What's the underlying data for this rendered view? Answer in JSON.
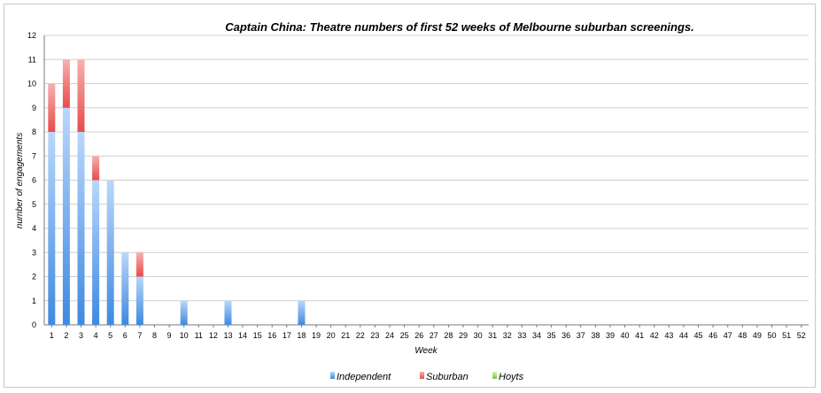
{
  "chart_data": {
    "type": "bar",
    "stacked": true,
    "title": "Captain China: Theatre numbers of first 52 weeks of Melbourne suburban screenings.",
    "xlabel": "Week",
    "ylabel": "number of engagements",
    "ylim": [
      0,
      12
    ],
    "yticks": [
      "0",
      "1",
      "2",
      "3",
      "4",
      "5",
      "6",
      "7",
      "8",
      "9",
      "10",
      "11",
      "12"
    ],
    "grid": true,
    "legend_position": "bottom",
    "categories": [
      "1",
      "2",
      "3",
      "4",
      "5",
      "6",
      "7",
      "8",
      "9",
      "10",
      "11",
      "12",
      "13",
      "14",
      "15",
      "16",
      "17",
      "18",
      "19",
      "20",
      "21",
      "22",
      "23",
      "24",
      "25",
      "26",
      "27",
      "28",
      "29",
      "30",
      "31",
      "32",
      "33",
      "34",
      "35",
      "36",
      "37",
      "38",
      "39",
      "40",
      "41",
      "42",
      "43",
      "44",
      "45",
      "46",
      "47",
      "48",
      "49",
      "50",
      "51",
      "52"
    ],
    "series": [
      {
        "name": "Independent",
        "color": "#4a90e2",
        "values": [
          8,
          9,
          8,
          6,
          6,
          3,
          2,
          0,
          0,
          1,
          0,
          0,
          1,
          0,
          0,
          0,
          0,
          1,
          0,
          0,
          0,
          0,
          0,
          0,
          0,
          0,
          0,
          0,
          0,
          0,
          0,
          0,
          0,
          0,
          0,
          0,
          0,
          0,
          0,
          0,
          0,
          0,
          0,
          0,
          0,
          0,
          0,
          0,
          0,
          0,
          0,
          0
        ]
      },
      {
        "name": "Suburban",
        "color": "#ef4f4f",
        "values": [
          2,
          2,
          3,
          1,
          0,
          0,
          1,
          0,
          0,
          0,
          0,
          0,
          0,
          0,
          0,
          0,
          0,
          0,
          0,
          0,
          0,
          0,
          0,
          0,
          0,
          0,
          0,
          0,
          0,
          0,
          0,
          0,
          0,
          0,
          0,
          0,
          0,
          0,
          0,
          0,
          0,
          0,
          0,
          0,
          0,
          0,
          0,
          0,
          0,
          0,
          0,
          0
        ]
      },
      {
        "name": "Hoyts",
        "color": "#8fd35a",
        "values": [
          0,
          0,
          0,
          0,
          0,
          0,
          0,
          0,
          0,
          0,
          0,
          0,
          0,
          0,
          0,
          0,
          0,
          0,
          0,
          0,
          0,
          0,
          0,
          0,
          0,
          0,
          0,
          0,
          0,
          0,
          0,
          0,
          0,
          0,
          0,
          0,
          0,
          0,
          0,
          0,
          0,
          0,
          0,
          0,
          0,
          0,
          0,
          0,
          0,
          0,
          0,
          0
        ]
      }
    ]
  }
}
